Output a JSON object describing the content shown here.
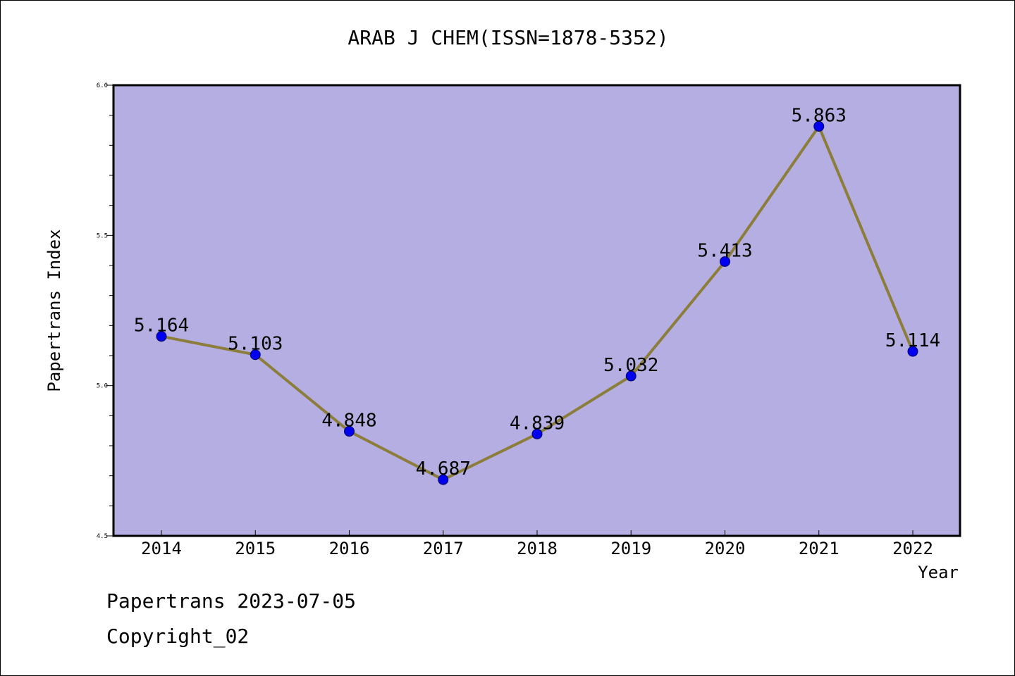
{
  "chart_data": {
    "type": "line",
    "title": "ARAB J CHEM(ISSN=1878-5352)",
    "xlabel": "Year",
    "ylabel": "Papertrans Index",
    "categories": [
      "2014",
      "2015",
      "2016",
      "2017",
      "2018",
      "2019",
      "2020",
      "2021",
      "2022"
    ],
    "series": [
      {
        "values": [
          5.164,
          5.103,
          4.848,
          4.687,
          4.839,
          5.032,
          5.413,
          5.863,
          5.114
        ],
        "data_labels": [
          "5.164",
          "5.103",
          "4.848",
          "4.687",
          "4.839",
          "5.032",
          "5.413",
          "5.863",
          "5.114"
        ]
      }
    ],
    "ylim": [
      4.5,
      6.0
    ],
    "y_ticks": [
      "4.5",
      "5.0",
      "5.5",
      "6.0"
    ],
    "grid": false,
    "colors": {
      "plot_background": "#b4aee2",
      "line": "#8c7d3a",
      "marker": "#0000ee"
    }
  },
  "footer": {
    "date_text": "Papertrans 2023-07-05",
    "copyright_text": "Copyright_02"
  }
}
